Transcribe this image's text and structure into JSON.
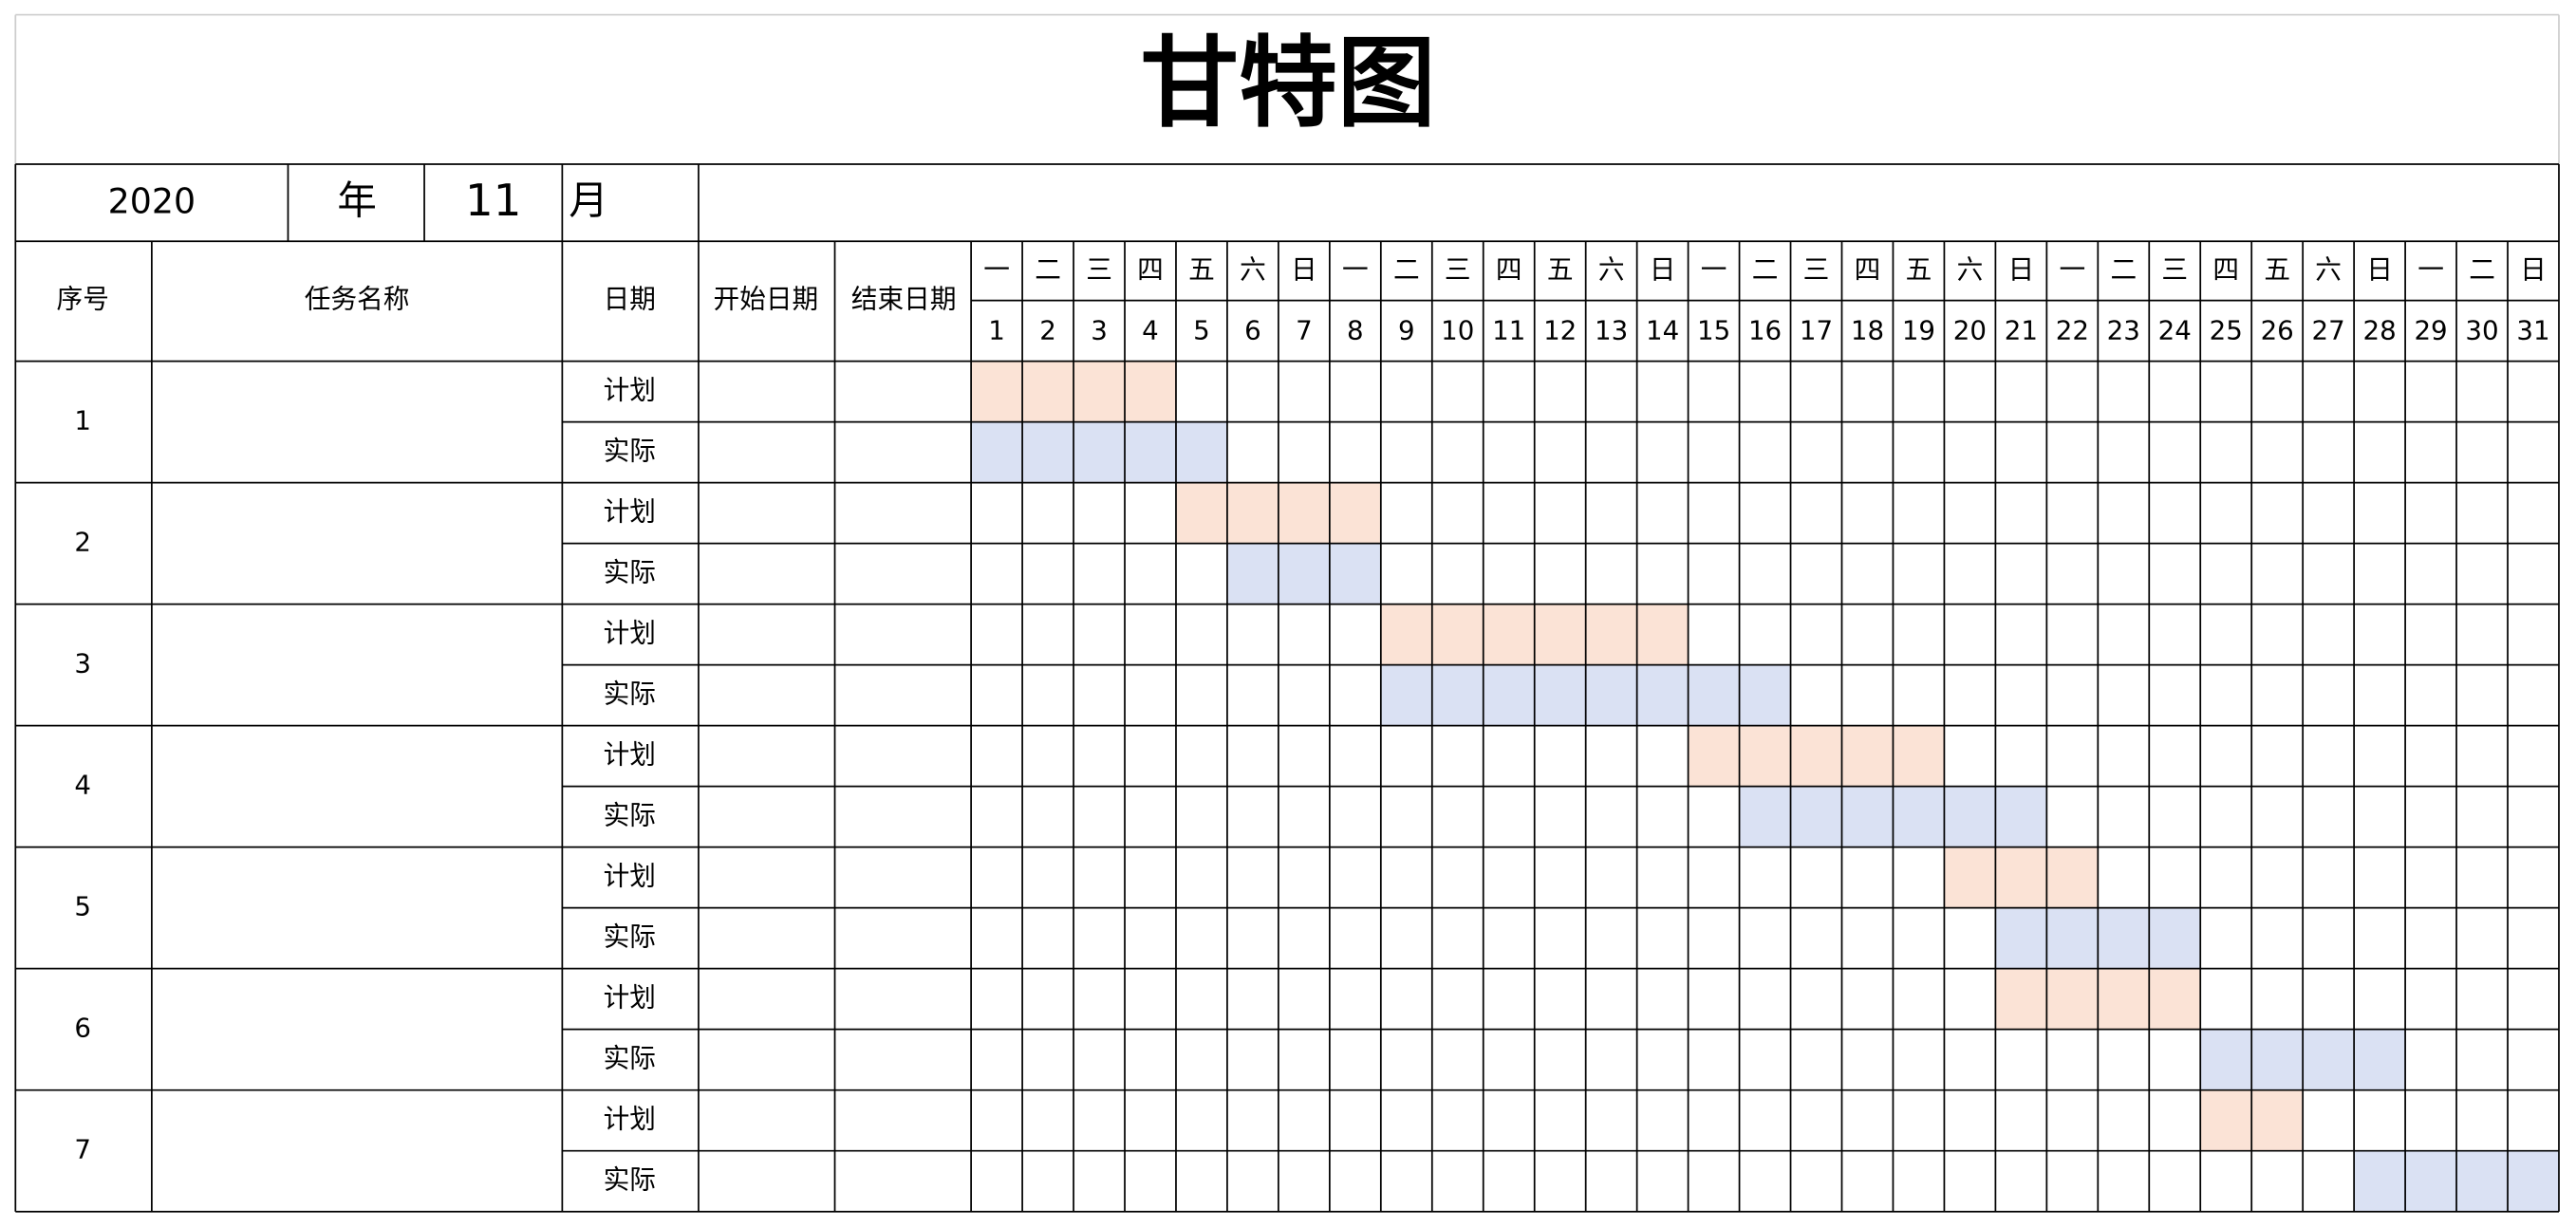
{
  "header": {
    "title": "甘特图"
  },
  "period": {
    "year": "2020",
    "year_unit": "年",
    "month": "11",
    "month_unit": "月"
  },
  "columns": {
    "index": "序号",
    "task": "任务名称",
    "date": "日期",
    "start": "开始日期",
    "end": "结束日期"
  },
  "weekdays": [
    "一",
    "二",
    "三",
    "四",
    "五",
    "六",
    "日",
    "一",
    "二",
    "三",
    "四",
    "五",
    "六",
    "日",
    "一",
    "二",
    "三",
    "四",
    "五",
    "六",
    "日",
    "一",
    "二",
    "三",
    "四",
    "五",
    "六",
    "日",
    "一",
    "二",
    "日"
  ],
  "days": [
    1,
    2,
    3,
    4,
    5,
    6,
    7,
    8,
    9,
    10,
    11,
    12,
    13,
    14,
    15,
    16,
    17,
    18,
    19,
    20,
    21,
    22,
    23,
    24,
    25,
    26,
    27,
    28,
    29,
    30,
    31
  ],
  "row_labels": {
    "plan": "计划",
    "actual": "实际"
  },
  "tasks": [
    {
      "id": 1,
      "plan": [
        1,
        4
      ],
      "actual": [
        1,
        5
      ]
    },
    {
      "id": 2,
      "plan": [
        5,
        8
      ],
      "actual": [
        6,
        8
      ]
    },
    {
      "id": 3,
      "plan": [
        9,
        14
      ],
      "actual": [
        9,
        16
      ]
    },
    {
      "id": 4,
      "plan": [
        15,
        19
      ],
      "actual": [
        16,
        21
      ]
    },
    {
      "id": 5,
      "plan": [
        20,
        22
      ],
      "actual": [
        21,
        24
      ]
    },
    {
      "id": 6,
      "plan": [
        21,
        24
      ],
      "actual": [
        25,
        28
      ]
    },
    {
      "id": 7,
      "plan": [
        25,
        26
      ],
      "actual": [
        28,
        31
      ]
    }
  ],
  "colors": {
    "plan": "#fbe3d6",
    "actual": "#dae1f3"
  }
}
